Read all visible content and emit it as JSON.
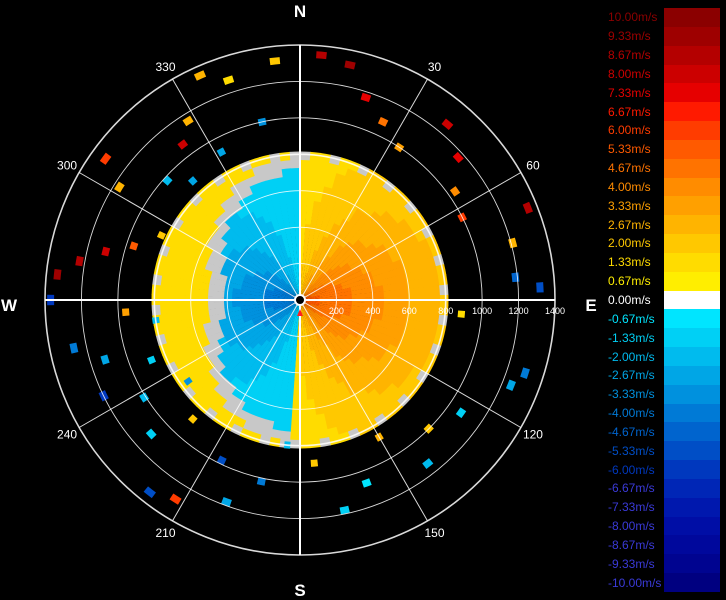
{
  "chart_data": {
    "type": "heatmap",
    "projection": "polar",
    "compass": {
      "north": "N",
      "east": "E",
      "south": "S",
      "west": "W"
    },
    "azimuth_labels": [
      "30",
      "60",
      "120",
      "150",
      "210",
      "240",
      "300",
      "330"
    ],
    "azimuth_angles": [
      30,
      60,
      120,
      150,
      210,
      240,
      300,
      330
    ],
    "range_labels": [
      "200",
      "400",
      "600",
      "800",
      "1000",
      "1200",
      "1400"
    ],
    "range_values": [
      200,
      400,
      600,
      800,
      1000,
      1200,
      1400
    ],
    "range_max": 1400,
    "grid": true,
    "scatter_cells": [
      {
        "az": 5,
        "r": 1330,
        "v": 8.67
      },
      {
        "az": 12,
        "r": 1300,
        "v": 9.33
      },
      {
        "az": 18,
        "r": 1150,
        "v": 7.33
      },
      {
        "az": 25,
        "r": 1060,
        "v": 4.67
      },
      {
        "az": 33,
        "r": 980,
        "v": 3.33
      },
      {
        "az": 40,
        "r": 1240,
        "v": 8.0
      },
      {
        "az": 48,
        "r": 1150,
        "v": 7.33
      },
      {
        "az": 55,
        "r": 1020,
        "v": 4.0
      },
      {
        "az": 63,
        "r": 980,
        "v": 6.0
      },
      {
        "az": 68,
        "r": 1330,
        "v": 8.67
      },
      {
        "az": 75,
        "r": 1190,
        "v": 2.67
      },
      {
        "az": 84,
        "r": 1170,
        "v": -4.67
      },
      {
        "az": 87,
        "r": 1300,
        "v": -5.33
      },
      {
        "az": 95,
        "r": 870,
        "v": 1.33
      },
      {
        "az": 108,
        "r": 1280,
        "v": -4.0
      },
      {
        "az": 112,
        "r": 1230,
        "v": -2.67
      },
      {
        "az": 125,
        "r": 1060,
        "v": -1.33
      },
      {
        "az": 135,
        "r": 980,
        "v": 2.0
      },
      {
        "az": 142,
        "r": 1120,
        "v": -2.0
      },
      {
        "az": 150,
        "r": 850,
        "v": 2.67
      },
      {
        "az": 160,
        "r": 1050,
        "v": -0.67
      },
      {
        "az": 168,
        "r": 1160,
        "v": -1.33
      },
      {
        "az": 175,
        "r": 880,
        "v": 2.0
      },
      {
        "az": 185,
        "r": 780,
        "v": -2.0
      },
      {
        "az": 192,
        "r": 1000,
        "v": -4.0
      },
      {
        "az": 200,
        "r": 1160,
        "v": -2.67
      },
      {
        "az": 206,
        "r": 960,
        "v": -5.33
      },
      {
        "az": 212,
        "r": 1270,
        "v": 6.0
      },
      {
        "az": 218,
        "r": 1320,
        "v": -5.33
      },
      {
        "az": 222,
        "r": 860,
        "v": 2.0
      },
      {
        "az": 228,
        "r": 1080,
        "v": -1.33
      },
      {
        "az": 234,
        "r": 740,
        "v": -3.33
      },
      {
        "az": 238,
        "r": 990,
        "v": -2.0
      },
      {
        "az": 244,
        "r": 1180,
        "v": -6.0
      },
      {
        "az": 248,
        "r": 860,
        "v": -1.33
      },
      {
        "az": 253,
        "r": 1100,
        "v": -2.67
      },
      {
        "az": 258,
        "r": 1250,
        "v": -4.0
      },
      {
        "az": 262,
        "r": 780,
        "v": -2.0
      },
      {
        "az": 266,
        "r": 940,
        "v": 3.33
      },
      {
        "az": 270,
        "r": 1350,
        "v": -6.0
      },
      {
        "az": 276,
        "r": 1320,
        "v": 9.33
      },
      {
        "az": 280,
        "r": 1210,
        "v": 8.67
      },
      {
        "az": 284,
        "r": 1080,
        "v": 8.0
      },
      {
        "az": 288,
        "r": 940,
        "v": 5.33
      },
      {
        "az": 295,
        "r": 820,
        "v": 2.0
      },
      {
        "az": 302,
        "r": 1150,
        "v": 2.67
      },
      {
        "az": 306,
        "r": 1300,
        "v": 6.0
      },
      {
        "az": 312,
        "r": 960,
        "v": -2.0
      },
      {
        "az": 318,
        "r": 860,
        "v": -2.67
      },
      {
        "az": 323,
        "r": 1050,
        "v": 8.0
      },
      {
        "az": 328,
        "r": 1140,
        "v": 2.67
      },
      {
        "az": 332,
        "r": 900,
        "v": -2.67
      },
      {
        "az": 336,
        "r": 1330,
        "v": 2.67
      },
      {
        "az": 342,
        "r": 1250,
        "v": 1.33
      },
      {
        "az": 348,
        "r": 980,
        "v": -3.33
      },
      {
        "az": 354,
        "r": 1300,
        "v": 2.0
      }
    ]
  },
  "legend": [
    {
      "label": "10.00m/s",
      "color": "#8b0000"
    },
    {
      "label": "9.33m/s",
      "color": "#9e0000"
    },
    {
      "label": "8.67m/s",
      "color": "#b40000"
    },
    {
      "label": "8.00m/s",
      "color": "#cc0000"
    },
    {
      "label": "7.33m/s",
      "color": "#e60000"
    },
    {
      "label": "6.67m/s",
      "color": "#ff1a00"
    },
    {
      "label": "6.00m/s",
      "color": "#ff3c00"
    },
    {
      "label": "5.33m/s",
      "color": "#ff5a00"
    },
    {
      "label": "4.67m/s",
      "color": "#ff7300"
    },
    {
      "label": "4.00m/s",
      "color": "#ff8c00"
    },
    {
      "label": "3.33m/s",
      "color": "#ffa000"
    },
    {
      "label": "2.67m/s",
      "color": "#ffb400"
    },
    {
      "label": "2.00m/s",
      "color": "#ffc800"
    },
    {
      "label": "1.33m/s",
      "color": "#ffdc00"
    },
    {
      "label": "0.67m/s",
      "color": "#ffee00"
    },
    {
      "label": "0.00m/s",
      "color": "#ffffff"
    },
    {
      "label": "-0.67m/s",
      "color": "#00e5ff"
    },
    {
      "label": "-1.33m/s",
      "color": "#00d0f5"
    },
    {
      "label": "-2.00m/s",
      "color": "#00bbee"
    },
    {
      "label": "-2.67m/s",
      "color": "#00a6e6"
    },
    {
      "label": "-3.33m/s",
      "color": "#0091de"
    },
    {
      "label": "-4.00m/s",
      "color": "#007ad6"
    },
    {
      "label": "-4.67m/s",
      "color": "#0064ce"
    },
    {
      "label": "-5.33m/s",
      "color": "#004ec6"
    },
    {
      "label": "-6.00m/s",
      "color": "#0038be"
    },
    {
      "label": "-6.67m/s",
      "color": "#0026b6"
    },
    {
      "label": "-7.33m/s",
      "color": "#0018ae"
    },
    {
      "label": "-8.00m/s",
      "color": "#000ea6"
    },
    {
      "label": "-8.67m/s",
      "color": "#00089c"
    },
    {
      "label": "-9.33m/s",
      "color": "#000490"
    },
    {
      "label": "-10.00m/s",
      "color": "#000080"
    }
  ],
  "colors": {
    "grid": "#ffffff",
    "noise": "#c8c8c8"
  }
}
